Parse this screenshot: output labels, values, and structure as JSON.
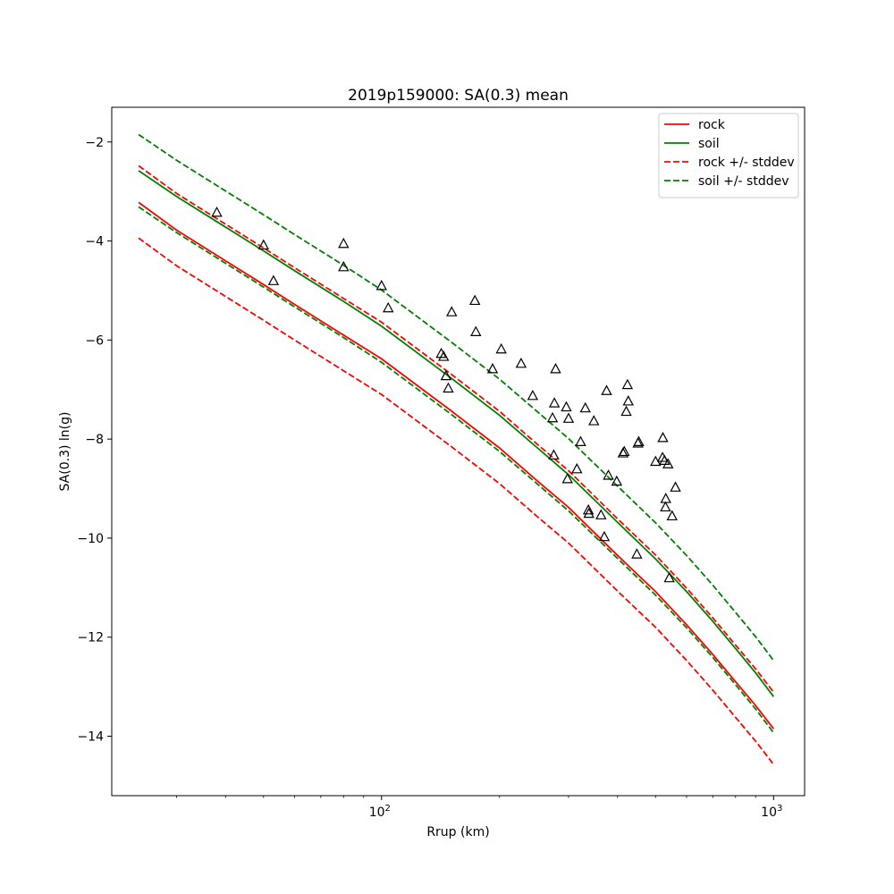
{
  "chart_data": {
    "type": "line",
    "title": "2019p159000: SA(0.3) mean",
    "xlabel": "Rrup (km)",
    "ylabel": "SA(0.3) ln(g)",
    "xscale": "log",
    "xlim": [
      20.5,
      1200
    ],
    "ylim": [
      -15.2,
      -1.3
    ],
    "xticks": [
      {
        "value": 100,
        "base": "10",
        "exp": "2"
      },
      {
        "value": 1000,
        "base": "10",
        "exp": "3"
      }
    ],
    "xminor": [
      30,
      40,
      50,
      60,
      70,
      80,
      90,
      200,
      300,
      400,
      500,
      600,
      700,
      800,
      900
    ],
    "yticks": [
      -14,
      -12,
      -10,
      -8,
      -6,
      -4,
      -2
    ],
    "ytick_labels": [
      "−14",
      "−12",
      "−10",
      "−8",
      "−6",
      "−4",
      "−2"
    ],
    "grid": false,
    "legend_position": "upper-right",
    "colors": {
      "rock": "#ff0000",
      "soil": "#008000",
      "points": "#000000"
    },
    "series": [
      {
        "name": "rock",
        "style": "solid",
        "color": "#ff0000",
        "x": [
          24,
          30,
          40,
          50,
          60,
          80,
          100,
          150,
          200,
          250,
          300,
          400,
          500,
          600,
          700,
          800,
          900,
          1000
        ],
        "y": [
          -3.22,
          -3.78,
          -4.4,
          -4.88,
          -5.28,
          -5.9,
          -6.38,
          -7.42,
          -8.18,
          -8.85,
          -9.38,
          -10.35,
          -11.08,
          -11.75,
          -12.35,
          -12.9,
          -13.38,
          -13.85
        ]
      },
      {
        "name": "soil",
        "style": "solid",
        "color": "#008000",
        "x": [
          24,
          30,
          40,
          50,
          60,
          80,
          100,
          150,
          200,
          250,
          300,
          400,
          500,
          600,
          700,
          800,
          900,
          1000
        ],
        "y": [
          -2.58,
          -3.1,
          -3.72,
          -4.2,
          -4.6,
          -5.22,
          -5.72,
          -6.76,
          -7.52,
          -8.18,
          -8.72,
          -9.68,
          -10.42,
          -11.08,
          -11.68,
          -12.23,
          -12.72,
          -13.2
        ]
      },
      {
        "name": "rock +/- stddev",
        "style": "dashed",
        "color": "#ff0000",
        "x": [
          24,
          30,
          40,
          50,
          60,
          80,
          100,
          150,
          200,
          250,
          300,
          400,
          500,
          600,
          700,
          800,
          900,
          1000
        ],
        "y": [
          -2.48,
          -3.04,
          -3.66,
          -4.14,
          -4.54,
          -5.16,
          -5.64,
          -6.68,
          -7.44,
          -8.11,
          -8.64,
          -9.61,
          -10.34,
          -11.01,
          -11.61,
          -12.16,
          -12.64,
          -13.11
        ]
      },
      {
        "name": "",
        "style": "dashed",
        "color": "#ff0000",
        "x": [
          24,
          30,
          40,
          50,
          60,
          80,
          100,
          150,
          200,
          250,
          300,
          400,
          500,
          600,
          700,
          800,
          900,
          1000
        ],
        "y": [
          -3.94,
          -4.5,
          -5.12,
          -5.6,
          -6.0,
          -6.62,
          -7.1,
          -8.14,
          -8.9,
          -9.57,
          -10.1,
          -11.07,
          -11.8,
          -12.47,
          -13.07,
          -13.62,
          -14.1,
          -14.57
        ]
      },
      {
        "name": "soil +/- stddev",
        "style": "dashed",
        "color": "#008000",
        "x": [
          24,
          30,
          40,
          50,
          60,
          80,
          100,
          150,
          200,
          250,
          300,
          400,
          500,
          600,
          700,
          800,
          900,
          1000
        ],
        "y": [
          -1.85,
          -2.37,
          -2.99,
          -3.47,
          -3.87,
          -4.49,
          -4.99,
          -6.03,
          -6.79,
          -7.45,
          -7.99,
          -8.95,
          -9.69,
          -10.35,
          -10.95,
          -11.5,
          -11.99,
          -12.47
        ]
      },
      {
        "name": "",
        "style": "dashed",
        "color": "#008000",
        "x": [
          24,
          30,
          40,
          50,
          60,
          80,
          100,
          150,
          200,
          250,
          300,
          400,
          500,
          600,
          700,
          800,
          900,
          1000
        ],
        "y": [
          -3.31,
          -3.83,
          -4.45,
          -4.93,
          -5.33,
          -5.95,
          -6.45,
          -7.49,
          -8.25,
          -8.91,
          -9.45,
          -10.41,
          -11.15,
          -11.81,
          -12.41,
          -12.96,
          -13.45,
          -13.93
        ]
      }
    ],
    "points": {
      "marker": "triangle",
      "x": [
        38,
        50,
        53,
        80,
        80,
        100,
        104,
        142,
        144,
        146,
        148,
        151,
        173,
        174,
        192,
        202,
        227,
        243,
        273,
        275,
        276,
        278,
        296,
        298,
        300,
        315,
        322,
        331,
        337,
        338,
        348,
        363,
        370,
        375,
        379,
        398,
        413,
        416,
        421,
        424,
        426,
        448,
        451,
        453,
        500,
        521,
        522,
        527,
        530,
        531,
        538,
        542,
        551,
        562
      ],
      "y": [
        -3.42,
        -4.08,
        -4.8,
        -4.05,
        -4.52,
        -4.9,
        -5.35,
        -6.27,
        -6.33,
        -6.72,
        -6.97,
        -5.43,
        -5.2,
        -5.83,
        -6.58,
        -6.18,
        -6.47,
        -7.12,
        -7.57,
        -8.32,
        -7.27,
        -6.58,
        -7.35,
        -8.8,
        -7.58,
        -8.6,
        -8.05,
        -7.37,
        -9.43,
        -9.5,
        -7.63,
        -9.53,
        -9.97,
        -7.02,
        -8.73,
        -8.85,
        -8.28,
        -8.25,
        -7.44,
        -6.9,
        -7.23,
        -10.32,
        -8.08,
        -8.05,
        -8.45,
        -8.37,
        -7.97,
        -8.43,
        -9.37,
        -9.2,
        -8.5,
        -10.8,
        -9.55,
        -8.97
      ]
    }
  }
}
